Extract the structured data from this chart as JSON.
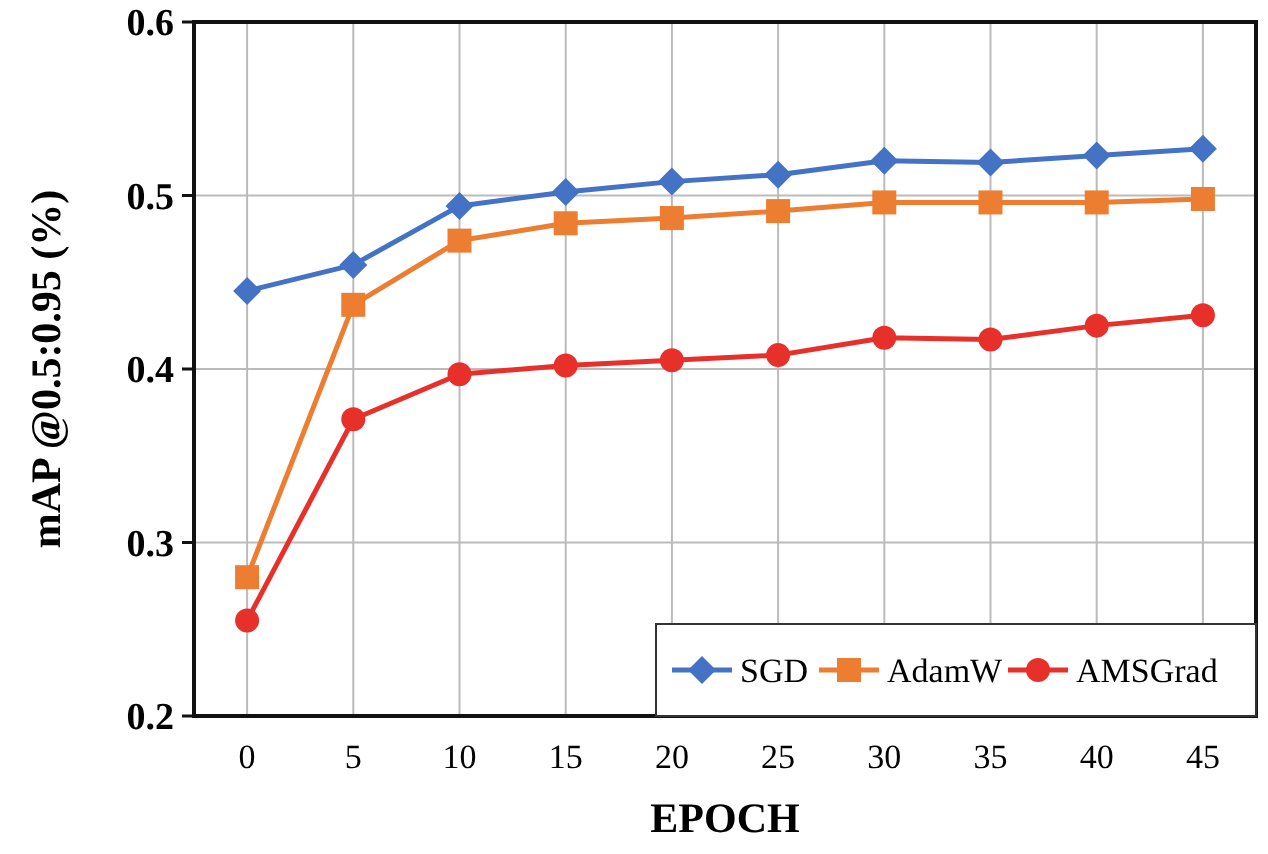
{
  "chart_data": {
    "type": "line",
    "xlabel": "EPOCH",
    "ylabel": "mAP @0.5:0.95 (%)",
    "categories": [
      "0",
      "5",
      "10",
      "15",
      "20",
      "25",
      "30",
      "35",
      "40",
      "45"
    ],
    "series": [
      {
        "name": "SGD",
        "color": "#4472c4",
        "marker": "diamond",
        "values": [
          0.445,
          0.46,
          0.494,
          0.502,
          0.508,
          0.512,
          0.52,
          0.519,
          0.523,
          0.527
        ]
      },
      {
        "name": "AdamW",
        "color": "#ed7d31",
        "marker": "square",
        "values": [
          0.28,
          0.437,
          0.474,
          0.484,
          0.487,
          0.491,
          0.496,
          0.496,
          0.496,
          0.498
        ]
      },
      {
        "name": "AMSGrad",
        "color": "#e8302a",
        "marker": "circle",
        "values": [
          0.255,
          0.371,
          0.397,
          0.402,
          0.405,
          0.408,
          0.418,
          0.417,
          0.425,
          0.431
        ]
      }
    ],
    "ylim": [
      0.2,
      0.6
    ],
    "yticks": [
      0.2,
      0.3,
      0.4,
      0.5,
      0.6
    ],
    "grid": true,
    "legend": "bottom right"
  }
}
